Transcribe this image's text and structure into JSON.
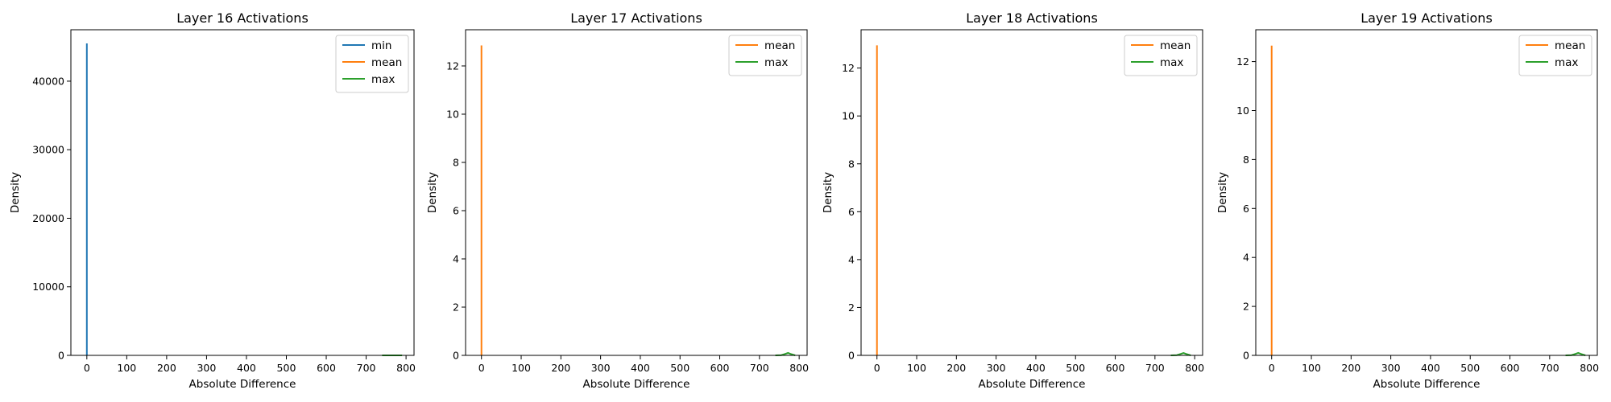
{
  "chart_data": [
    {
      "type": "line",
      "title": "Layer 16 Activations",
      "xlabel": "Absolute Difference",
      "ylabel": "Density",
      "xlim": [
        -40,
        820
      ],
      "ylim": [
        0,
        47500
      ],
      "xticks": [
        0,
        100,
        200,
        300,
        400,
        500,
        600,
        700,
        800
      ],
      "yticks": [
        0,
        10000,
        20000,
        30000,
        40000
      ],
      "legend": "top-right",
      "grid": false,
      "series": [
        {
          "name": "min",
          "color": "#1f77b4",
          "x": [
            0,
            0,
            0
          ],
          "y": [
            0,
            45500,
            0
          ]
        },
        {
          "name": "mean",
          "color": "#ff7f0e",
          "x": [
            0,
            0,
            0
          ],
          "y": [
            0,
            13,
            0
          ]
        },
        {
          "name": "max",
          "color": "#2ca02c",
          "x": [
            740,
            755,
            765,
            772,
            780,
            790
          ],
          "y": [
            0,
            0.005,
            0.05,
            0.09,
            0.05,
            0
          ]
        }
      ]
    },
    {
      "type": "line",
      "title": "Layer 17 Activations",
      "xlabel": "Absolute Difference",
      "ylabel": "Density",
      "xlim": [
        -40,
        820
      ],
      "ylim": [
        0,
        13.5
      ],
      "xticks": [
        0,
        100,
        200,
        300,
        400,
        500,
        600,
        700,
        800
      ],
      "yticks": [
        0,
        2,
        4,
        6,
        8,
        10,
        12
      ],
      "legend": "top-right",
      "grid": false,
      "series": [
        {
          "name": "mean",
          "color": "#ff7f0e",
          "x": [
            0,
            0,
            0
          ],
          "y": [
            0,
            12.85,
            0
          ]
        },
        {
          "name": "max",
          "color": "#2ca02c",
          "x": [
            740,
            755,
            765,
            772,
            780,
            790
          ],
          "y": [
            0,
            0.01,
            0.06,
            0.1,
            0.05,
            0
          ]
        }
      ]
    },
    {
      "type": "line",
      "title": "Layer 18 Activations",
      "xlabel": "Absolute Difference",
      "ylabel": "Density",
      "xlim": [
        -40,
        820
      ],
      "ylim": [
        0,
        13.6
      ],
      "xticks": [
        0,
        100,
        200,
        300,
        400,
        500,
        600,
        700,
        800
      ],
      "yticks": [
        0,
        2,
        4,
        6,
        8,
        10,
        12
      ],
      "legend": "top-right",
      "grid": false,
      "series": [
        {
          "name": "mean",
          "color": "#ff7f0e",
          "x": [
            0,
            0,
            0
          ],
          "y": [
            0,
            12.95,
            0
          ]
        },
        {
          "name": "max",
          "color": "#2ca02c",
          "x": [
            740,
            755,
            765,
            772,
            780,
            790
          ],
          "y": [
            0,
            0.01,
            0.06,
            0.1,
            0.05,
            0
          ]
        }
      ]
    },
    {
      "type": "line",
      "title": "Layer 19 Activations",
      "xlabel": "Absolute Difference",
      "ylabel": "Density",
      "xlim": [
        -40,
        820
      ],
      "ylim": [
        0,
        13.3
      ],
      "xticks": [
        0,
        100,
        200,
        300,
        400,
        500,
        600,
        700,
        800
      ],
      "yticks": [
        0,
        2,
        4,
        6,
        8,
        10,
        12
      ],
      "legend": "top-right",
      "grid": false,
      "series": [
        {
          "name": "mean",
          "color": "#ff7f0e",
          "x": [
            0,
            0,
            0
          ],
          "y": [
            0,
            12.65,
            0
          ]
        },
        {
          "name": "max",
          "color": "#2ca02c",
          "x": [
            740,
            755,
            765,
            772,
            780,
            790
          ],
          "y": [
            0,
            0.01,
            0.06,
            0.1,
            0.05,
            0
          ]
        }
      ]
    }
  ]
}
